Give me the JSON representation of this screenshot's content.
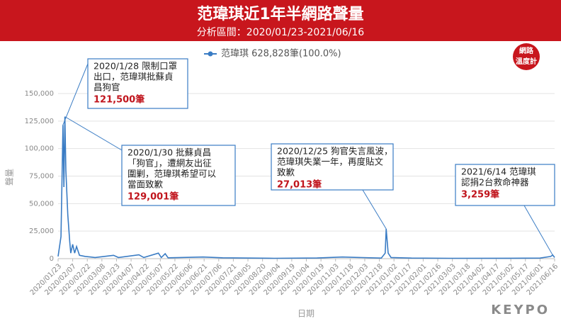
{
  "chart_data": {
    "type": "line",
    "title": "范瑋琪近1年半網路聲量",
    "subtitle": "分析區間：2020/01/23-2021/06/16",
    "x_label": "日期",
    "y_label": "聲量",
    "x": [
      "2020/01/23",
      "2020/01/26",
      "2020/01/28",
      "2020/01/29",
      "2020/01/30",
      "2020/01/31",
      "2020/02/02",
      "2020/02/04",
      "2020/02/05",
      "2020/02/07",
      "2020/02/09",
      "2020/02/11",
      "2020/02/14",
      "2020/02/20",
      "2020/03/01",
      "2020/03/20",
      "2020/03/25",
      "2020/04/15",
      "2020/04/20",
      "2020/05/05",
      "2020/05/08",
      "2020/05/12",
      "2020/05/15",
      "2020/06/20",
      "2020/07/10",
      "2020/09/01",
      "2020/10/15",
      "2020/11/10",
      "2020/12/20",
      "2020/12/24",
      "2020/12/25",
      "2020/12/27",
      "2020/12/30",
      "2021/01/20",
      "2021/03/01",
      "2021/05/01",
      "2021/06/01",
      "2021/06/12",
      "2021/06/14",
      "2021/06/16"
    ],
    "series": [
      {
        "name": "范瑋琪 628,828筆(100.0%)",
        "color": "#3a7cc4",
        "values": [
          2000,
          20000,
          121500,
          65000,
          129001,
          80000,
          40000,
          15000,
          5000,
          13000,
          5000,
          11000,
          3000,
          2000,
          1000,
          3000,
          1000,
          3500,
          1000,
          5000,
          1000,
          4500,
          800,
          1500,
          800,
          300,
          600,
          1500,
          500,
          5000,
          27013,
          5000,
          1000,
          500,
          300,
          400,
          500,
          2000,
          3259,
          1000
        ],
        "value_labels": [
          null,
          null,
          "121,500筆",
          null,
          "129,001筆",
          null,
          null,
          null,
          null,
          null,
          null,
          null,
          null,
          null,
          null,
          null,
          null,
          null,
          null,
          null,
          null,
          null,
          null,
          null,
          null,
          null,
          null,
          null,
          null,
          null,
          "27,013筆",
          null,
          null,
          null,
          null,
          null,
          null,
          null,
          "3,259筆",
          null
        ]
      }
    ],
    "annotations": [
      {
        "lines": [
          "2020/1/28 限制口罩",
          "出口，范瑋琪批蘇貞",
          "昌狗官"
        ]
      },
      {
        "lines": [
          "2020/1/30 批蘇貞昌",
          "「狗官」，遭網友出征",
          "圍剿，范瑋琪希望可以",
          "當面致歉"
        ]
      },
      {
        "lines": [
          "2020/12/25 狗官失言風波，",
          "范瑋琪失業一年，再度貼文",
          "致歉"
        ]
      },
      {
        "lines": [
          "2021/6/14 范瑋琪",
          "認捐2台救命神器"
        ]
      }
    ],
    "xlim": [
      "2020/01/23",
      "2021/06/16"
    ],
    "xticks": [
      "2020/01/23",
      "2020/02/07",
      "2020/02/22",
      "2020/03/08",
      "2020/03/23",
      "2020/04/07",
      "2020/04/22",
      "2020/05/07",
      "2020/05/22",
      "2020/06/06",
      "2020/06/21",
      "2020/07/06",
      "2020/07/21",
      "2020/08/05",
      "2020/08/20",
      "2020/09/04",
      "2020/09/19",
      "2020/10/04",
      "2020/10/19",
      "2020/11/03",
      "2020/11/18",
      "2020/12/03",
      "2020/12/18",
      "2021/01/02",
      "2021/01/17",
      "2021/02/01",
      "2021/02/16",
      "2021/03/03",
      "2021/03/18",
      "2021/04/02",
      "2021/04/17",
      "2021/05/02",
      "2021/05/17",
      "2021/06/01",
      "2021/06/16"
    ],
    "ylim": [
      0,
      150000
    ],
    "yticks": [
      0,
      {
        "value": 25000,
        "label": "25,000"
      },
      {
        "value": 50000,
        "label": "50,000"
      },
      {
        "value": 75000,
        "label": "75,000"
      },
      {
        "value": 100000,
        "label": "100,000"
      },
      {
        "value": 125000,
        "label": "125,000"
      },
      {
        "value": 150000,
        "label": "150,000"
      }
    ]
  },
  "branding": {
    "badge": [
      "網路",
      "溫度計"
    ],
    "logo": "KEYPO"
  }
}
